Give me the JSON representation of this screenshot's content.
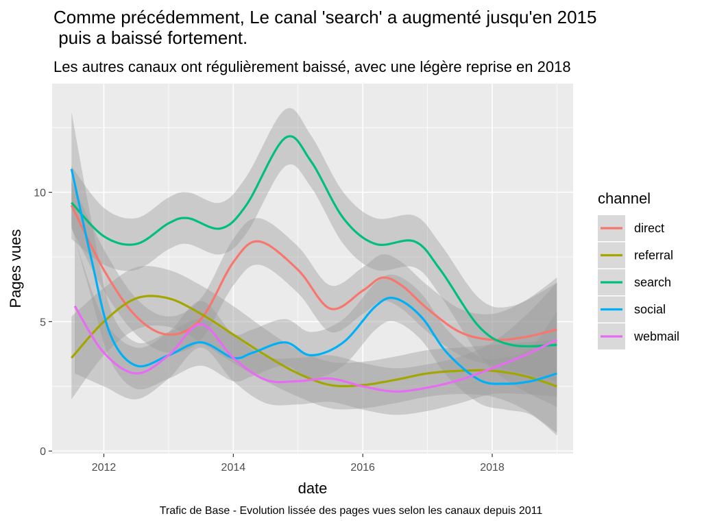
{
  "chart_data": {
    "type": "line",
    "title": "Comme précédemment, Le canal 'search' a augmenté jusqu'en 2015\n puis a baissé fortement.",
    "subtitle": "Les autres canaux ont régulièrement baissé, avec une légère reprise en 2018",
    "caption": "Trafic de Base - Evolution lissée des pages vues selon les canaux depuis 2011",
    "xlabel": "date",
    "ylabel": "Pages vues",
    "xlim": [
      2011.2,
      2019.25
    ],
    "ylim": [
      -0.1,
      14.2
    ],
    "x_ticks": [
      2012,
      2014,
      2016,
      2018
    ],
    "y_ticks": [
      0,
      5,
      10
    ],
    "grid": true,
    "legend": {
      "title": "channel",
      "position": "right"
    },
    "series": [
      {
        "name": "direct",
        "color": "#F8766D",
        "x": [
          2011.5,
          2012,
          2012.5,
          2013,
          2013.5,
          2014,
          2014.4,
          2015,
          2015.5,
          2016,
          2016.3,
          2016.6,
          2017,
          2017.5,
          2018,
          2018.5,
          2019
        ],
        "y": [
          9.5,
          7.0,
          5.2,
          4.5,
          5.1,
          7.3,
          8.1,
          7.0,
          5.5,
          6.2,
          6.7,
          6.4,
          5.5,
          4.6,
          4.3,
          4.4,
          4.7
        ],
        "band": [
          0.9,
          0.8,
          0.7,
          0.7,
          0.8,
          0.9,
          0.9,
          0.9,
          0.9,
          0.9,
          0.9,
          0.9,
          0.9,
          0.9,
          1.0,
          1.4,
          2.0
        ]
      },
      {
        "name": "referral",
        "color": "#A3A500",
        "x": [
          2011.5,
          2012,
          2012.5,
          2013,
          2013.5,
          2014,
          2014.5,
          2015,
          2015.5,
          2016,
          2016.5,
          2017,
          2017.5,
          2018,
          2018.5,
          2019
        ],
        "y": [
          3.6,
          5.0,
          5.9,
          5.9,
          5.3,
          4.5,
          3.7,
          3.0,
          2.55,
          2.55,
          2.75,
          3.0,
          3.1,
          3.1,
          2.9,
          2.5
        ],
        "band": [
          1.6,
          1.3,
          1.2,
          1.1,
          1.1,
          1.1,
          1.0,
          0.9,
          0.9,
          0.9,
          0.9,
          0.9,
          0.9,
          1.0,
          1.3,
          1.8
        ]
      },
      {
        "name": "search",
        "color": "#00BF7D",
        "x": [
          2011.5,
          2012,
          2012.5,
          2013,
          2013.3,
          2013.8,
          2014.2,
          2014.8,
          2015.2,
          2015.7,
          2016.2,
          2016.8,
          2017.2,
          2017.8,
          2018.3,
          2019
        ],
        "y": [
          9.6,
          8.3,
          8.0,
          8.8,
          9.0,
          8.6,
          9.5,
          12.1,
          11.2,
          9.0,
          8.0,
          8.1,
          7.0,
          4.8,
          4.1,
          4.1
        ],
        "band": [
          1.4,
          1.1,
          1.0,
          1.0,
          1.0,
          1.0,
          1.1,
          1.1,
          1.0,
          1.0,
          1.0,
          1.0,
          1.0,
          1.1,
          1.5,
          2.4
        ]
      },
      {
        "name": "social",
        "color": "#00B0F6",
        "x": [
          2011.5,
          2011.8,
          2012.1,
          2012.5,
          2013,
          2013.5,
          2014,
          2014.3,
          2014.8,
          2015.2,
          2015.7,
          2016.2,
          2016.5,
          2016.9,
          2017.3,
          2017.8,
          2018.2,
          2018.6,
          2019
        ],
        "y": [
          10.9,
          7.5,
          4.5,
          3.3,
          3.7,
          4.2,
          3.6,
          3.8,
          4.2,
          3.7,
          4.2,
          5.6,
          5.9,
          5.2,
          3.8,
          2.75,
          2.6,
          2.7,
          3.0
        ],
        "band": [
          2.2,
          1.5,
          1.0,
          0.9,
          0.9,
          0.9,
          0.9,
          0.9,
          0.9,
          0.9,
          0.9,
          0.9,
          0.9,
          0.9,
          0.9,
          0.9,
          1.0,
          1.3,
          2.4
        ]
      },
      {
        "name": "webmail",
        "color": "#E76BF3",
        "x": [
          2011.55,
          2012,
          2012.5,
          2013,
          2013.5,
          2014,
          2014.5,
          2015,
          2015.5,
          2016,
          2016.5,
          2017,
          2017.5,
          2018,
          2018.5,
          2019
        ],
        "y": [
          5.6,
          3.8,
          3.0,
          3.7,
          4.9,
          3.6,
          2.75,
          2.7,
          2.8,
          2.5,
          2.3,
          2.45,
          2.75,
          3.2,
          3.7,
          4.3
        ],
        "band": [
          2.6,
          1.3,
          1.0,
          0.9,
          0.9,
          0.9,
          0.9,
          0.9,
          0.9,
          0.9,
          0.9,
          0.9,
          0.9,
          1.0,
          1.5,
          2.2
        ]
      }
    ]
  }
}
